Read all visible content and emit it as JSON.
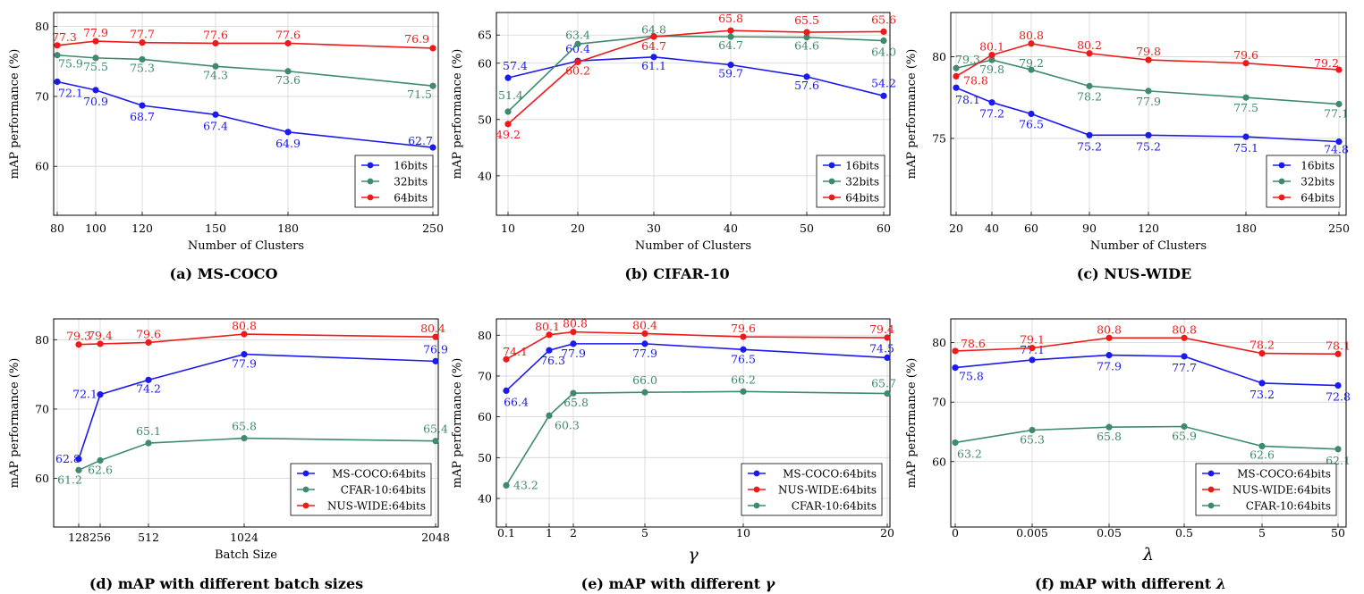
{
  "colors": {
    "blue": "#1a1aee",
    "green": "#3f8a6c",
    "red": "#ee1a1a",
    "grid": "#d4d4d4"
  },
  "chart_data": [
    {
      "type": "line",
      "caption": "(a) MS-COCO",
      "xlabel": "Number of Clusters",
      "ylabel": "mAP performance (%)",
      "x": [
        80,
        100,
        120,
        150,
        180,
        250
      ],
      "ylim": [
        53,
        82
      ],
      "yticks": [
        60,
        70,
        80
      ],
      "grid": true,
      "legend_position": "bottom-right",
      "series": [
        {
          "name": "16bits",
          "color": "blue",
          "values": [
            72.1,
            70.9,
            68.7,
            67.4,
            64.9,
            62.7
          ],
          "labels": [
            "72.1",
            "70.9",
            "68.7",
            "67.4",
            "64.9",
            "62.7"
          ]
        },
        {
          "name": "32bits",
          "color": "green",
          "values": [
            75.9,
            75.5,
            75.3,
            74.3,
            73.6,
            71.5
          ],
          "labels": [
            "75.9",
            "75.5",
            "75.3",
            "74.3",
            "73.6",
            "71.5"
          ]
        },
        {
          "name": "64bits",
          "color": "red",
          "values": [
            77.3,
            77.9,
            77.7,
            77.6,
            77.6,
            76.9
          ],
          "labels": [
            "77.3",
            "77.9",
            "77.7",
            "77.6",
            "77.6",
            "76.9"
          ]
        }
      ]
    },
    {
      "type": "line",
      "caption": "(b) CIFAR-10",
      "xlabel": "Number of Clusters",
      "ylabel": "mAP performance (%)",
      "x": [
        10,
        20,
        30,
        40,
        50,
        60
      ],
      "ylim": [
        33,
        69
      ],
      "yticks": [
        40,
        50,
        60,
        65
      ],
      "grid": true,
      "legend_position": "bottom-right",
      "series": [
        {
          "name": "16bits",
          "color": "blue",
          "values": [
            57.4,
            60.4,
            61.1,
            59.7,
            57.6,
            54.2
          ],
          "labels": [
            "57.4",
            "60.4",
            "61.1",
            "59.7",
            "57.6",
            "54.2"
          ]
        },
        {
          "name": "32bits",
          "color": "green",
          "values": [
            51.4,
            63.4,
            64.8,
            64.7,
            64.6,
            64.0
          ],
          "labels": [
            "51.4",
            "63.4",
            "64.8",
            "64.7",
            "64.6",
            "64.0"
          ]
        },
        {
          "name": "64bits",
          "color": "red",
          "values": [
            49.2,
            60.2,
            64.7,
            65.8,
            65.5,
            65.6
          ],
          "labels": [
            "49.2",
            "60.2",
            "64.7",
            "65.8",
            "65.5",
            "65.6"
          ]
        }
      ]
    },
    {
      "type": "line",
      "caption": "(c) NUS-WIDE",
      "xlabel": "Number of Clusters",
      "ylabel": "mAP performance (%)",
      "x": [
        20,
        40,
        60,
        90,
        120,
        180,
        250
      ],
      "ylim": [
        70.3,
        82.7
      ],
      "yticks": [
        75,
        80
      ],
      "grid": true,
      "legend_position": "bottom-right",
      "series": [
        {
          "name": "16bits",
          "color": "blue",
          "values": [
            78.1,
            77.2,
            76.5,
            75.2,
            75.2,
            75.1,
            74.8
          ],
          "labels": [
            "78.1",
            "77.2",
            "76.5",
            "75.2",
            "75.2",
            "75.1",
            "74.8"
          ]
        },
        {
          "name": "32bits",
          "color": "green",
          "values": [
            79.3,
            79.8,
            79.2,
            78.2,
            77.9,
            77.5,
            77.1
          ],
          "labels": [
            "79.3",
            "79.8",
            "79.2",
            "78.2",
            "77.9",
            "77.5",
            "77.1"
          ]
        },
        {
          "name": "64bits",
          "color": "red",
          "values": [
            78.8,
            80.1,
            80.8,
            80.2,
            79.8,
            79.6,
            79.2
          ],
          "labels": [
            "78.8",
            "80.1",
            "80.8",
            "80.2",
            "79.8",
            "79.6",
            "79.2"
          ]
        }
      ]
    },
    {
      "type": "line",
      "caption": "(d) mAP with different batch sizes",
      "xlabel": "Batch Size",
      "ylabel": "mAP performance (%)",
      "x": [
        128,
        256,
        512,
        1024,
        2048
      ],
      "xscale": "linear",
      "ylim": [
        53,
        83
      ],
      "yticks": [
        60,
        70,
        80
      ],
      "grid": true,
      "legend_position": "bottom-right",
      "series": [
        {
          "name": "MS-COCO:64bits",
          "color": "blue",
          "values": [
            62.8,
            72.1,
            74.2,
            77.9,
            76.9
          ],
          "labels": [
            "62.8",
            "72.1",
            "74.2",
            "77.9",
            "76.9"
          ]
        },
        {
          "name": "CFAR-10:64bits",
          "color": "green",
          "values": [
            61.2,
            62.6,
            65.1,
            65.8,
            65.4
          ],
          "labels": [
            "61.2",
            "62.6",
            "65.1",
            "65.8",
            "65.4"
          ]
        },
        {
          "name": "NUS-WIDE:64bits",
          "color": "red",
          "values": [
            79.3,
            79.4,
            79.6,
            80.8,
            80.4
          ],
          "labels": [
            "79.3",
            "79.4",
            "79.6",
            "80.8",
            "80.4"
          ]
        }
      ]
    },
    {
      "type": "line",
      "caption": "(e) mAP with different",
      "caption_symbol": "γ",
      "xlabel": "γ",
      "ylabel": "mAP performance (%)",
      "x": [
        0.1,
        1,
        2,
        5,
        10,
        20
      ],
      "x_tick_labels": [
        "0.1",
        "1",
        "2",
        "5",
        "10",
        "20"
      ],
      "ylim": [
        33,
        84
      ],
      "yticks": [
        40,
        50,
        60,
        70,
        80
      ],
      "grid": true,
      "legend_position": "bottom-right",
      "series": [
        {
          "name": "MS-COCO:64bits",
          "color": "blue",
          "values": [
            66.4,
            76.3,
            77.9,
            77.9,
            76.5,
            74.5
          ],
          "labels": [
            "66.4",
            "76.3",
            "77.9",
            "77.9",
            "76.5",
            "74.5"
          ]
        },
        {
          "name": "NUS-WIDE:64bits",
          "color": "red",
          "values": [
            74.1,
            80.1,
            80.8,
            80.4,
            79.6,
            79.4
          ],
          "labels": [
            "74.1",
            "80.1",
            "80.8",
            "80.4",
            "79.6",
            "79.4"
          ]
        },
        {
          "name": "CFAR-10:64bits",
          "color": "green",
          "values": [
            43.2,
            60.3,
            65.8,
            66.0,
            66.2,
            65.7
          ],
          "labels": [
            "43.2",
            "60.3",
            "65.8",
            "66.0",
            "66.2",
            "65.7"
          ]
        }
      ]
    },
    {
      "type": "line",
      "caption": "(f) mAP with different",
      "caption_symbol": "λ",
      "xlabel": "λ",
      "ylabel": "mAP performance (%)",
      "x": [
        0,
        0.005,
        0.05,
        0.5,
        5,
        50
      ],
      "x_tick_labels": [
        "0",
        "0.005",
        "0.05",
        "0.5",
        "5",
        "50"
      ],
      "ylim": [
        49,
        84
      ],
      "yticks": [
        60,
        70,
        80
      ],
      "grid": true,
      "legend_position": "bottom-right",
      "series": [
        {
          "name": "MS-COCO:64bits",
          "color": "blue",
          "values": [
            75.8,
            77.1,
            77.9,
            77.7,
            73.2,
            72.8
          ],
          "labels": [
            "75.8",
            "77.1",
            "77.9",
            "77.7",
            "73.2",
            "72.8"
          ]
        },
        {
          "name": "NUS-WIDE:64bits",
          "color": "red",
          "values": [
            78.6,
            79.1,
            80.8,
            80.8,
            78.2,
            78.1
          ],
          "labels": [
            "78.6",
            "79.1",
            "80.8",
            "80.8",
            "78.2",
            "78.1"
          ]
        },
        {
          "name": "CFAR-10:64bits",
          "color": "green",
          "values": [
            63.2,
            65.3,
            65.8,
            65.9,
            62.6,
            62.1
          ],
          "labels": [
            "63.2",
            "65.3",
            "65.8",
            "65.9",
            "62.6",
            "62.1"
          ]
        }
      ]
    }
  ]
}
